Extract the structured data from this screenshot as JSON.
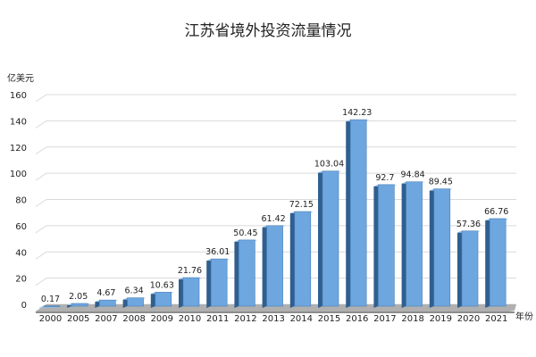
{
  "chart_data": {
    "type": "bar",
    "title": "江苏省境外投资流量情况",
    "ylabel": "亿美元",
    "xlabel": "年份",
    "categories": [
      "2000",
      "2005",
      "2007",
      "2008",
      "2009",
      "2010",
      "2011",
      "2012",
      "2013",
      "2014",
      "2015",
      "2016",
      "2017",
      "2018",
      "2019",
      "2020",
      "2021"
    ],
    "values": [
      0.17,
      2.05,
      4.67,
      6.34,
      10.63,
      21.76,
      36.01,
      50.45,
      61.42,
      72.15,
      103.04,
      142.23,
      92.7,
      94.84,
      89.45,
      57.36,
      66.76
    ],
    "value_labels": [
      "0.17",
      "2.05",
      "4.67",
      "6.34",
      "10.63",
      "21.76",
      "36.01",
      "50.45",
      "61.42",
      "72.15",
      "103.04",
      "142.23",
      "92.7",
      "94.84",
      "89.45",
      "57.36",
      "66.76"
    ],
    "yticks": [
      "0",
      "20",
      "40",
      "60",
      "80",
      "100",
      "120",
      "140",
      "160"
    ],
    "ylim": [
      0,
      160
    ],
    "grid": true,
    "legend": "none",
    "colors": {
      "bar_front": "#6ea6e0",
      "bar_side": "#2f5f8f",
      "bar_top": "#9cc6ee",
      "floor": "#b0b0b0",
      "grid": "#d9d9d9"
    }
  }
}
